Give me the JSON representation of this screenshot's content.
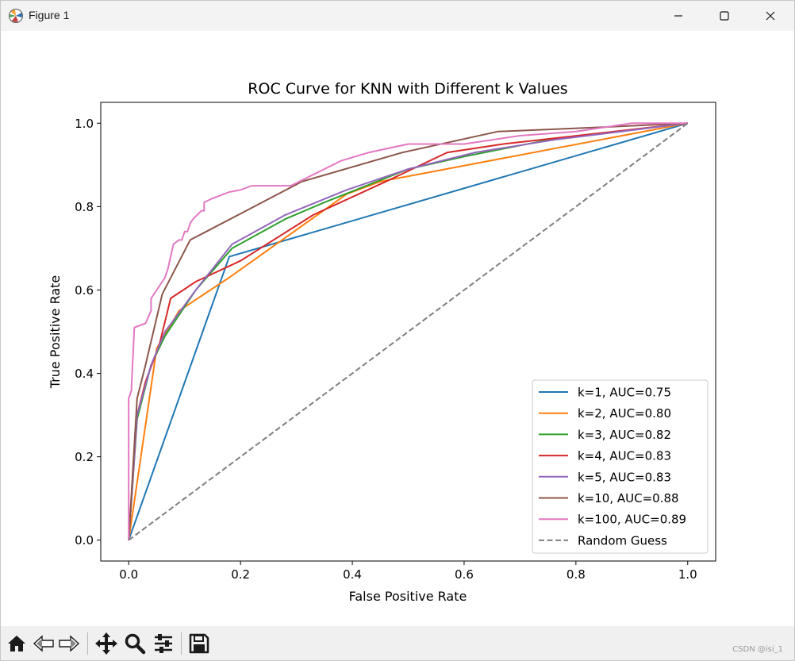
{
  "window": {
    "title": "Figure 1",
    "icons": {
      "app": "matplotlib-icon",
      "minimize": "minimize-icon",
      "maximize": "maximize-icon",
      "close": "close-icon"
    }
  },
  "toolbar": {
    "buttons": [
      {
        "name": "home-button",
        "icon": "home-icon"
      },
      {
        "name": "back-button",
        "icon": "arrow-left-icon"
      },
      {
        "name": "forward-button",
        "icon": "arrow-right-icon"
      },
      {
        "name": "pan-button",
        "icon": "move-icon"
      },
      {
        "name": "zoom-button",
        "icon": "search-icon"
      },
      {
        "name": "configure-subplots-button",
        "icon": "sliders-icon"
      },
      {
        "name": "save-button",
        "icon": "save-icon"
      }
    ],
    "watermark": "CSDN @isi_1"
  },
  "colors": {
    "k1": "#1f77b4",
    "k2": "#ff7f0e",
    "k3": "#2ca02c",
    "k4": "#d62728",
    "k5": "#9467bd",
    "k10": "#8c564b",
    "k100": "#e377c2",
    "random": "#7f7f7f"
  },
  "chart_data": {
    "type": "line",
    "title": "ROC Curve for KNN with Different k Values",
    "xlabel": "False Positive Rate",
    "ylabel": "True Positive Rate",
    "xlim": [
      -0.05,
      1.05
    ],
    "ylim": [
      -0.05,
      1.05
    ],
    "xticks": [
      0.0,
      0.2,
      0.4,
      0.6,
      0.8,
      1.0
    ],
    "yticks": [
      0.0,
      0.2,
      0.4,
      0.6,
      0.8,
      1.0
    ],
    "xtick_labels": [
      "0.0",
      "0.2",
      "0.4",
      "0.6",
      "0.8",
      "1.0"
    ],
    "ytick_labels": [
      "0.0",
      "0.2",
      "0.4",
      "0.6",
      "0.8",
      "1.0"
    ],
    "legend_position": "lower-right",
    "series": [
      {
        "name": "k=1, AUC=0.75",
        "key": "k1",
        "style": "solid",
        "x": [
          0,
          0.18,
          1
        ],
        "y": [
          0,
          0.68,
          1
        ]
      },
      {
        "name": "k=2, AUC=0.80",
        "key": "k2",
        "style": "solid",
        "x": [
          0,
          0.05,
          0.09,
          0.18,
          0.39,
          0.45,
          1
        ],
        "y": [
          0,
          0.46,
          0.55,
          0.63,
          0.83,
          0.86,
          1
        ]
      },
      {
        "name": "k=3, AUC=0.82",
        "key": "k3",
        "style": "solid",
        "x": [
          0,
          0.015,
          0.04,
          0.065,
          0.12,
          0.185,
          0.28,
          0.35,
          0.5,
          0.6,
          0.75,
          1
        ],
        "y": [
          0,
          0.29,
          0.42,
          0.49,
          0.6,
          0.7,
          0.77,
          0.81,
          0.89,
          0.92,
          0.96,
          1
        ]
      },
      {
        "name": "k=4, AUC=0.83",
        "key": "k4",
        "style": "solid",
        "x": [
          0,
          0.015,
          0.03,
          0.055,
          0.075,
          0.12,
          0.2,
          0.33,
          0.46,
          0.57,
          0.67,
          1
        ],
        "y": [
          0,
          0.3,
          0.38,
          0.47,
          0.58,
          0.62,
          0.67,
          0.78,
          0.86,
          0.93,
          0.95,
          1
        ]
      },
      {
        "name": "k=5, AUC=0.83",
        "key": "k5",
        "style": "solid",
        "x": [
          0,
          0.015,
          0.04,
          0.065,
          0.12,
          0.185,
          0.28,
          0.39,
          0.5,
          0.62,
          0.76,
          1
        ],
        "y": [
          0,
          0.3,
          0.42,
          0.5,
          0.6,
          0.71,
          0.78,
          0.84,
          0.89,
          0.93,
          0.96,
          1
        ]
      },
      {
        "name": "k=10, AUC=0.88",
        "key": "k10",
        "style": "solid",
        "x": [
          0,
          0.015,
          0.03,
          0.06,
          0.11,
          0.21,
          0.31,
          0.49,
          0.66,
          0.84,
          1
        ],
        "y": [
          0,
          0.34,
          0.42,
          0.59,
          0.72,
          0.79,
          0.86,
          0.93,
          0.98,
          0.99,
          1
        ]
      },
      {
        "name": "k=100, AUC=0.89",
        "key": "k100",
        "style": "solid",
        "x": [
          0,
          0,
          0.005,
          0.005,
          0.01,
          0.01,
          0.03,
          0.04,
          0.04,
          0.05,
          0.065,
          0.07,
          0.075,
          0.08,
          0.09,
          0.095,
          0.1,
          0.105,
          0.11,
          0.115,
          0.13,
          0.135,
          0.135,
          0.15,
          0.18,
          0.2,
          0.22,
          0.29,
          0.38,
          0.43,
          0.5,
          0.56,
          0.6,
          0.7,
          0.8,
          0.9,
          1
        ],
        "y": [
          0,
          0.34,
          0.36,
          0.37,
          0.51,
          0.51,
          0.52,
          0.55,
          0.58,
          0.6,
          0.63,
          0.65,
          0.68,
          0.71,
          0.72,
          0.72,
          0.74,
          0.74,
          0.76,
          0.77,
          0.79,
          0.79,
          0.81,
          0.82,
          0.835,
          0.84,
          0.85,
          0.85,
          0.91,
          0.93,
          0.95,
          0.95,
          0.95,
          0.97,
          0.98,
          1.0,
          1.0
        ]
      },
      {
        "name": "Random Guess",
        "key": "random",
        "style": "dashed",
        "x": [
          0,
          1
        ],
        "y": [
          0,
          1
        ]
      }
    ]
  }
}
